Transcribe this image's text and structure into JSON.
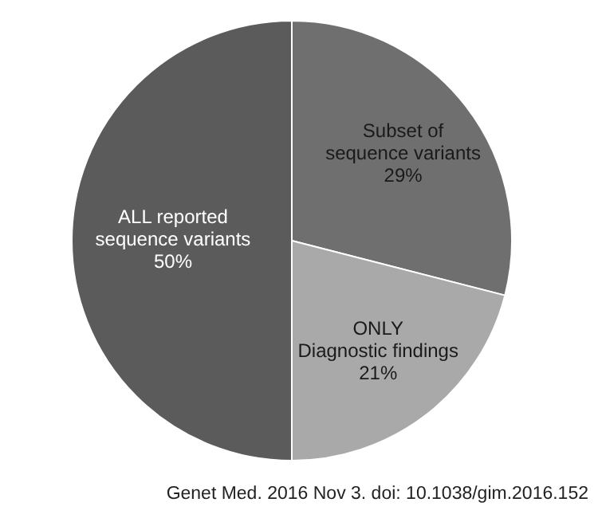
{
  "chart_data": {
    "type": "pie",
    "categories": [
      "Subset of\nsequence variants",
      "ONLY\nDiagnostic findings",
      "ALL reported\nsequence variants"
    ],
    "values": [
      29,
      21,
      50
    ],
    "value_labels": [
      "29%",
      "21%",
      "50%"
    ],
    "colors": [
      "#6f6f6f",
      "#a9a9a9",
      "#5b5b5b"
    ],
    "annotations": [
      "Genet Med. 2016 Nov 3. doi: 10.1038/gim.2016.152"
    ]
  }
}
